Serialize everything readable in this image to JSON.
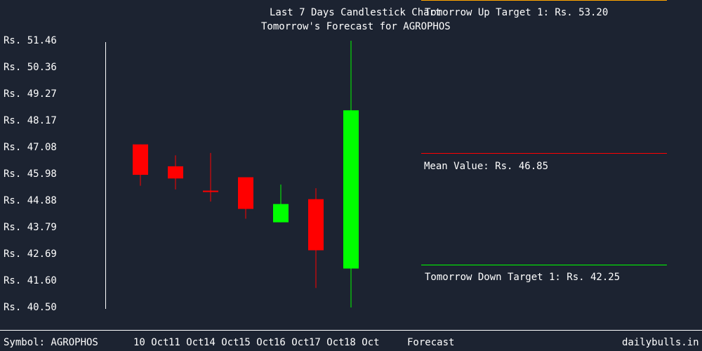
{
  "chart_data": {
    "type": "candlestick",
    "title": "Last 7 Days Candlestick Chart",
    "subtitle": "Tomorrow's Forecast for AGROPHOS",
    "y_ticks": [
      "Rs. 51.46",
      "Rs. 50.36",
      "Rs. 49.27",
      "Rs. 48.17",
      "Rs. 47.08",
      "Rs. 45.98",
      "Rs. 44.88",
      "Rs. 43.79",
      "Rs. 42.69",
      "Rs. 41.60",
      "Rs. 40.50"
    ],
    "ylim": [
      40.5,
      51.46
    ],
    "categories": [
      "10 Oct",
      "11 Oct",
      "14 Oct",
      "15 Oct",
      "16 Oct",
      "17 Oct",
      "18 Oct"
    ],
    "candles": [
      {
        "date": "10 Oct",
        "open": 47.2,
        "close": 45.95,
        "high": 47.2,
        "low": 45.5,
        "color": "#ff0000"
      },
      {
        "date": "11 Oct",
        "open": 46.3,
        "close": 45.8,
        "high": 46.75,
        "low": 45.35,
        "color": "#ff0000"
      },
      {
        "date": "14 Oct",
        "open": 45.3,
        "close": 45.25,
        "high": 46.85,
        "low": 44.85,
        "color": "#ff0000"
      },
      {
        "date": "15 Oct",
        "open": 45.85,
        "close": 44.55,
        "high": 45.85,
        "low": 44.15,
        "color": "#ff0000"
      },
      {
        "date": "16 Oct",
        "open": 44.0,
        "close": 44.75,
        "high": 45.55,
        "low": 44.0,
        "color": "#00ff00"
      },
      {
        "date": "17 Oct",
        "open": 44.95,
        "close": 42.85,
        "high": 45.4,
        "low": 41.3,
        "color": "#ff0000"
      },
      {
        "date": "18 Oct",
        "open": 42.1,
        "close": 48.6,
        "high": 51.46,
        "low": 40.5,
        "color": "#00ff00"
      }
    ],
    "forecast": {
      "label": "Forecast",
      "up_target": {
        "label": "Tomorrow Up Target 1: Rs. 53.20",
        "value": 53.2,
        "color": "#ffa500"
      },
      "mean": {
        "label": "Mean Value: Rs. 46.85",
        "value": 46.85,
        "color": "#ff0000"
      },
      "down_target": {
        "label": "Tomorrow Down Target 1: Rs. 42.25",
        "value": 42.25,
        "color": "#00ff00"
      }
    }
  },
  "footer": {
    "symbol": "Symbol: AGROPHOS",
    "brand": "dailybulls.in"
  }
}
